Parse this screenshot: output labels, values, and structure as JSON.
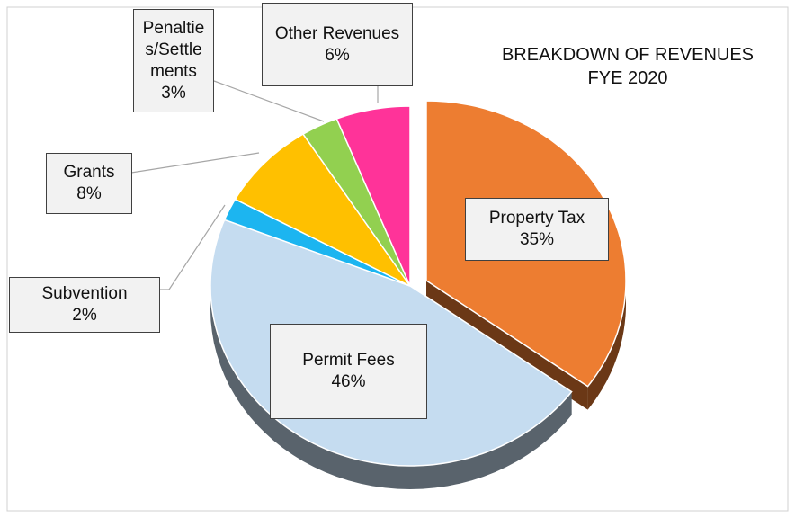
{
  "chart_data": {
    "type": "pie",
    "title": "BREAKDOWN OF REVENUES FYE 2020",
    "categories": [
      "Property Tax",
      "Permit Fees",
      "Subvention",
      "Grants",
      "Penalties/Settlements",
      "Other Revenues"
    ],
    "values": [
      35,
      46,
      2,
      8,
      3,
      6
    ],
    "value_labels": [
      "35%",
      "46%",
      "2%",
      "8%",
      "3%",
      "6%"
    ],
    "colors": [
      "#ED7D31",
      "#C5DCF0",
      "#1CB5F0",
      "#FFC000",
      "#92D050",
      "#FF3399"
    ]
  }
}
